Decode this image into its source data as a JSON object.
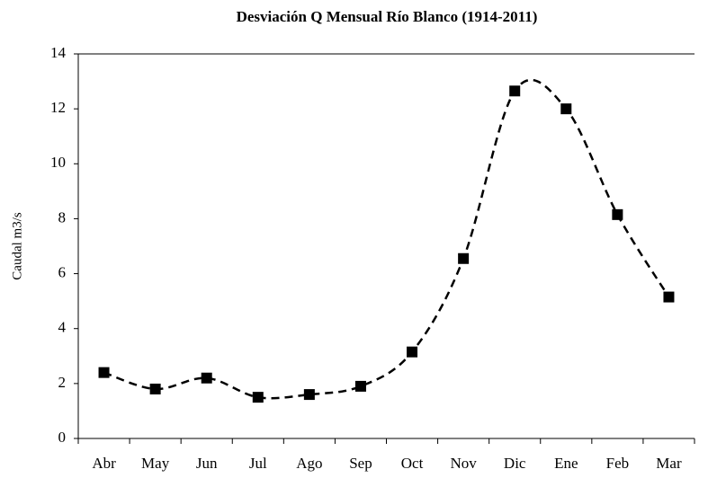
{
  "chart_data": {
    "type": "line",
    "title": "Desviación Q Mensual Río Blanco (1914-2011)",
    "ylabel": "Caudal m3/s",
    "categories": [
      "Abr",
      "May",
      "Jun",
      "Jul",
      "Ago",
      "Sep",
      "Oct",
      "Nov",
      "Dic",
      "Ene",
      "Feb",
      "Mar"
    ],
    "values": [
      2.4,
      1.8,
      2.2,
      1.5,
      1.6,
      1.9,
      3.15,
      6.55,
      12.65,
      12.0,
      8.15,
      5.15
    ],
    "color": "#000000",
    "ylim": [
      0,
      14
    ],
    "yticks": [
      0,
      2,
      4,
      6,
      8,
      10,
      12,
      14
    ],
    "grid": false
  }
}
